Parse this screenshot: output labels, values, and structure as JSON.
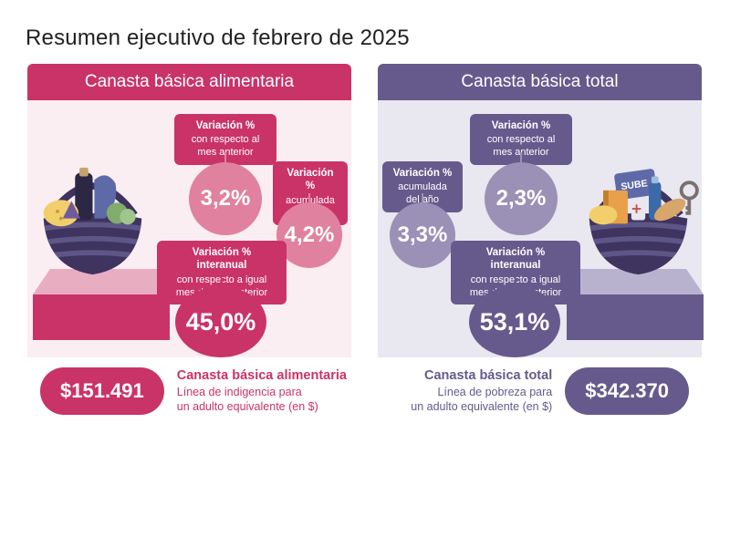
{
  "title": "Resumen ejecutivo de febrero de 2025",
  "left": {
    "header": "Canasta básica alimentaria",
    "bubbles": {
      "monthly": {
        "label_bold": "Variación %",
        "label": "con respecto al mes anterior",
        "value": "3,2%"
      },
      "ytd": {
        "label_bold": "Variación %",
        "label": "acumulada del año",
        "value": "4,2%"
      },
      "yoy": {
        "label_bold": "Variación % interanual",
        "label": "con respecto a igual mes del año anterior",
        "value": "45,0%"
      }
    },
    "footer": {
      "price": "$151.491",
      "name": "Canasta básica alimentaria",
      "desc": "Línea de indigencia para\nun adulto equivalente (en $)"
    },
    "colors": {
      "dark": "#ca3368",
      "light": "#e0819f",
      "panel_bg": "#fbeef2"
    }
  },
  "right": {
    "header": "Canasta básica total",
    "bubbles": {
      "monthly": {
        "label_bold": "Variación %",
        "label": "con respecto al mes anterior",
        "value": "2,3%"
      },
      "ytd": {
        "label_bold": "Variación %",
        "label": "acumulada del año",
        "value": "3,3%"
      },
      "yoy": {
        "label_bold": "Variación % interanual",
        "label": "con respecto a igual mes del año anterior",
        "value": "53,1%"
      }
    },
    "footer": {
      "price": "$342.370",
      "name": "Canasta básica total",
      "desc": "Línea de pobreza para\nun adulto equivalente (en $)"
    },
    "colors": {
      "dark": "#665a8d",
      "light": "#9b90b6",
      "panel_bg": "#e9e7f0"
    }
  },
  "typography": {
    "title_size": 24,
    "bubble_value_size": 24
  }
}
